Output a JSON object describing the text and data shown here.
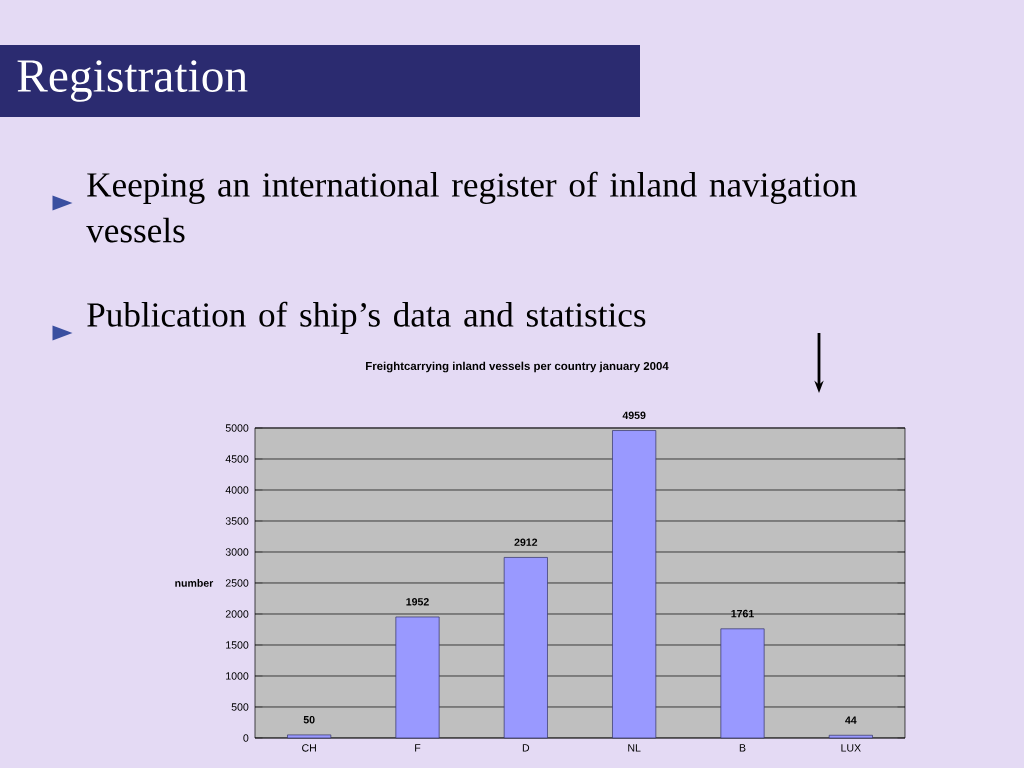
{
  "chart_data": {
    "type": "bar",
    "title": "Freightcarrying inland vessels per country january 2004",
    "ylabel": "number",
    "categories": [
      "CH",
      "F",
      "D",
      "NL",
      "B",
      "LUX"
    ],
    "values": [
      50,
      1952,
      2912,
      4959,
      1761,
      44
    ],
    "color": "#9999ff",
    "data_labels": true,
    "ylim": [
      0,
      5000
    ],
    "yticks": [
      0,
      500,
      1000,
      1500,
      2000,
      2500,
      3000,
      3500,
      4000,
      4500,
      5000
    ],
    "grid": "y",
    "annotations": [
      "Registration",
      "Keeping an international register of inland navigation vessels",
      "Publication of ship’s data and statistics"
    ]
  }
}
